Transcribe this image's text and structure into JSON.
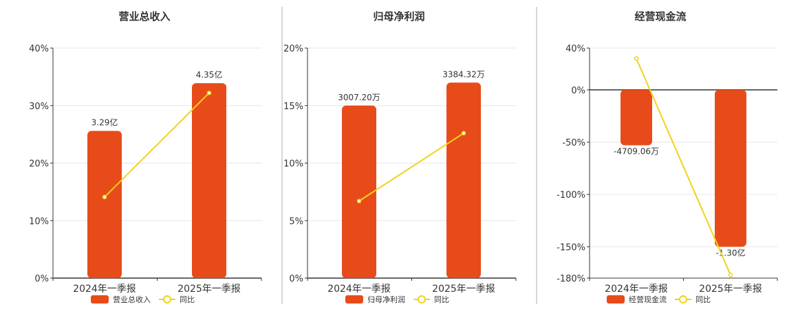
{
  "colors": {
    "bar": "#E84B1A",
    "line": "#F2D21B",
    "axis": "#333333",
    "grid": "#E6E6E6",
    "divider": "#B0B0B0"
  },
  "chart_data": [
    {
      "type": "bar",
      "title": "营业总收入",
      "categories": [
        "2024年一季报",
        "2025年一季报"
      ],
      "series": [
        {
          "name": "营业总收入",
          "kind": "bar",
          "labels": [
            "3.29亿",
            "4.35亿"
          ],
          "values_pct": [
            25.6,
            33.9
          ]
        },
        {
          "name": "同比",
          "kind": "line",
          "values_pct": [
            14.1,
            32.2
          ]
        }
      ],
      "yticks": [
        "0%",
        "10%",
        "20%",
        "30%",
        "40%"
      ],
      "yvalues": [
        0,
        10,
        20,
        30,
        40
      ],
      "ylim": [
        0,
        40
      ],
      "legend": "bottom-center"
    },
    {
      "type": "bar",
      "title": "归母净利润",
      "categories": [
        "2024年一季报",
        "2025年一季报"
      ],
      "series": [
        {
          "name": "归母净利润",
          "kind": "bar",
          "labels": [
            "3007.20万",
            "3384.32万"
          ],
          "values_pct": [
            15.0,
            17.0
          ]
        },
        {
          "name": "同比",
          "kind": "line",
          "values_pct": [
            6.7,
            12.6
          ]
        }
      ],
      "yticks": [
        "0%",
        "5%",
        "10%",
        "15%",
        "20%"
      ],
      "yvalues": [
        0,
        5,
        10,
        15,
        20
      ],
      "ylim": [
        0,
        20
      ],
      "legend": "bottom-center"
    },
    {
      "type": "bar",
      "title": "经营现金流",
      "categories": [
        "2024年一季报",
        "2025年一季报"
      ],
      "series": [
        {
          "name": "经营现金流",
          "kind": "bar",
          "labels": [
            "-4709.06万",
            "-1.30亿"
          ],
          "values_pct": [
            -53,
            -150
          ]
        },
        {
          "name": "同比",
          "kind": "line",
          "values_pct": [
            30,
            -177
          ]
        }
      ],
      "yticks": [
        "40%",
        "0%",
        "-50%",
        "-100%",
        "-150%",
        "-180%"
      ],
      "yvalues": [
        40,
        0,
        -50,
        -100,
        -150,
        -180
      ],
      "ylim": [
        -180,
        40
      ],
      "legend": "bottom-center"
    }
  ]
}
